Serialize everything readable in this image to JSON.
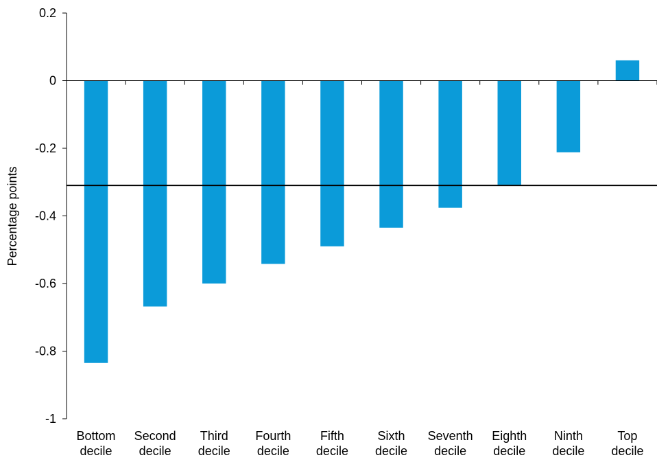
{
  "chart_data": {
    "type": "bar",
    "categories": [
      [
        "Bottom",
        "decile"
      ],
      [
        "Second",
        "decile"
      ],
      [
        "Third",
        "decile"
      ],
      [
        "Fourth",
        "decile"
      ],
      [
        "Fifth",
        "decile"
      ],
      [
        "Sixth",
        "decile"
      ],
      [
        "Seventh",
        "decile"
      ],
      [
        "Eighth",
        "decile"
      ],
      [
        "Ninth",
        "decile"
      ],
      [
        "Top",
        "decile"
      ]
    ],
    "values": [
      -0.835,
      -0.668,
      -0.6,
      -0.542,
      -0.49,
      -0.435,
      -0.376,
      -0.308,
      -0.212,
      0.06
    ],
    "reference_line": -0.31,
    "title": "",
    "xlabel": "",
    "ylabel": "Percentage points",
    "ylim": [
      -1,
      0.2
    ],
    "yticks": [
      0.2,
      0,
      -0.2,
      -0.4,
      -0.6,
      -0.8,
      -1
    ],
    "ytick_labels": [
      "0.2",
      "0",
      "-0.2",
      "-0.4",
      "-0.6",
      "-0.8",
      "-1"
    ],
    "grid": false,
    "legend": "none",
    "colors": {
      "bar": "#0b9bd9",
      "axis": "#000000",
      "reference_line": "#000000"
    }
  }
}
